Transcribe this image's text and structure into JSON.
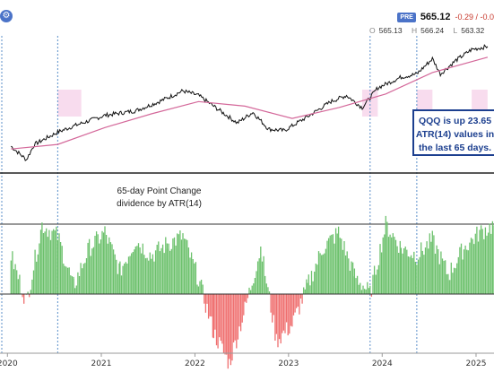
{
  "header": {
    "badge": "PRE",
    "last_price": "565.12",
    "change": "-0.29 / -0.0",
    "ohlc": [
      {
        "label": "O",
        "value": "565.13"
      },
      {
        "label": "H",
        "value": "566.24"
      },
      {
        "label": "L",
        "value": "563.32"
      },
      {
        "label": "C",
        "value": ""
      }
    ]
  },
  "colors": {
    "price_line": "#111111",
    "sma_line": "#d4689a",
    "highlight": "#f6d3ea",
    "positive": "#6cc16c",
    "negative": "#ef6f6f",
    "marker_line": "#5b8fc9",
    "callout_border": "#1c3f8f"
  },
  "annotations": {
    "callout": [
      "QQQ is up 23.65",
      "ATR(14) values in",
      "the last 65 days."
    ],
    "indicator_title": [
      "65-day Point Change",
      "dividence by ATR(14)"
    ]
  },
  "chart_data": [
    {
      "type": "line",
      "panel": "price",
      "x_axis": "date",
      "series": [
        {
          "name": "",
          "role": "price",
          "x": [
            "2020-01",
            "2020-03",
            "2020-04",
            "2020-07",
            "2020-09",
            "2021-01",
            "2021-05",
            "2021-08",
            "2021-11",
            "2022-01",
            "2022-03",
            "2022-06",
            "2022-08",
            "2022-10",
            "2022-12",
            "2023-03",
            "2023-06",
            "2023-08",
            "2023-10",
            "2023-12",
            "2024-03",
            "2024-05",
            "2024-07",
            "2024-08",
            "2024-10",
            "2024-12",
            "2025-02"
          ],
          "values": [
            214,
            170,
            220,
            260,
            280,
            315,
            330,
            360,
            395,
            380,
            345,
            290,
            325,
            270,
            265,
            310,
            360,
            380,
            340,
            405,
            440,
            450,
            500,
            450,
            495,
            530,
            540
          ]
        },
        {
          "name": "",
          "role": "sma",
          "x": [
            "2020-01",
            "2020-07",
            "2021-01",
            "2021-07",
            "2022-01",
            "2022-07",
            "2023-01",
            "2023-07",
            "2024-01",
            "2024-07",
            "2025-02"
          ],
          "values": [
            205,
            220,
            275,
            320,
            360,
            345,
            305,
            340,
            385,
            455,
            505
          ]
        }
      ]
    },
    {
      "type": "bar",
      "panel": "indicator",
      "x_axis": "date",
      "reference_line": 0,
      "series": [
        {
          "name": "",
          "x": [
            "2020-01",
            "2020-03",
            "2020-05",
            "2020-07",
            "2020-09",
            "2020-11",
            "2021-01",
            "2021-03",
            "2021-05",
            "2021-07",
            "2021-09",
            "2021-11",
            "2022-01",
            "2022-03",
            "2022-05",
            "2022-07",
            "2022-09",
            "2022-11",
            "2023-01",
            "2023-03",
            "2023-05",
            "2023-07",
            "2023-09",
            "2023-11",
            "2024-01",
            "2024-03",
            "2024-05",
            "2024-07",
            "2024-09",
            "2024-11",
            "2025-01",
            "2025-03"
          ],
          "values": [
            10,
            -2,
            18,
            15,
            2,
            12,
            16,
            6,
            14,
            10,
            13,
            15,
            4,
            -10,
            -18,
            -4,
            12,
            -12,
            -8,
            2,
            12,
            16,
            5,
            0,
            18,
            12,
            10,
            14,
            5,
            12,
            16,
            18
          ]
        }
      ]
    }
  ],
  "x_axis_labels": [
    "2020",
    "2021",
    "2022",
    "2023",
    "2024",
    "2025"
  ]
}
